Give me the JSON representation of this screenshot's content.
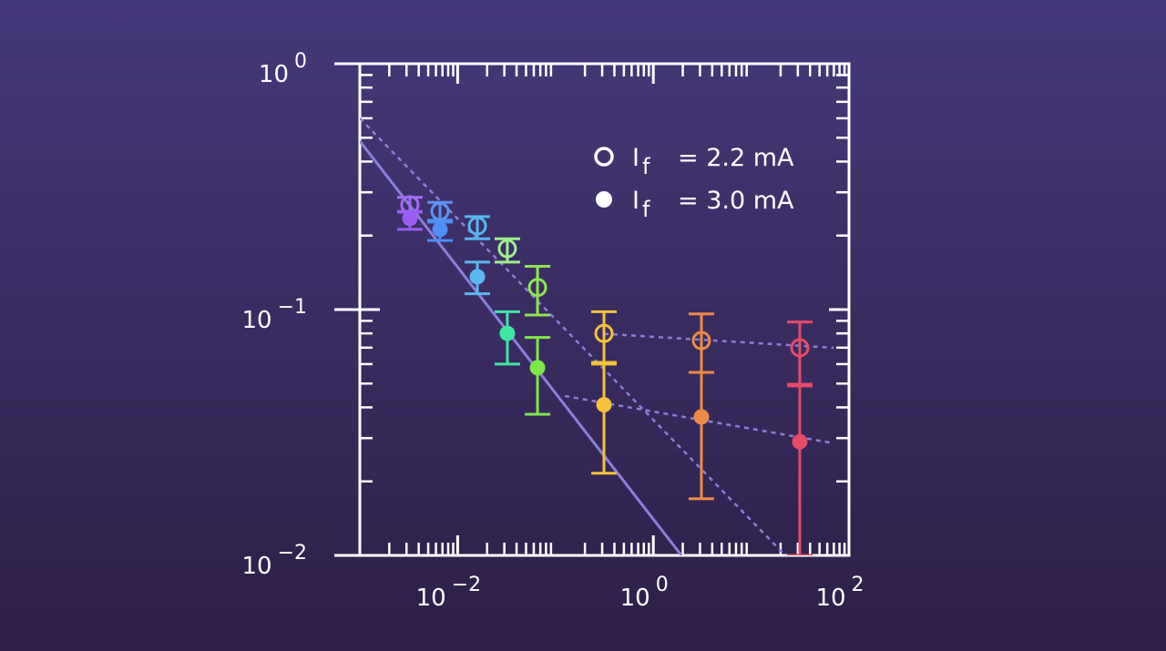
{
  "chart_data": {
    "type": "scatter",
    "log_x": true,
    "log_y": true,
    "xlim": [
      0.001,
      100
    ],
    "ylim": [
      0.01,
      1
    ],
    "xticks": [
      {
        "value": 0.01,
        "label": "10",
        "exponent": "−2"
      },
      {
        "value": 1,
        "label": "10",
        "exponent": "0"
      },
      {
        "value": 100,
        "label": "10",
        "exponent": "2"
      }
    ],
    "yticks": [
      {
        "value": 1,
        "label": "10",
        "exponent": "0"
      },
      {
        "value": 0.1,
        "label": "10",
        "exponent": "−1"
      },
      {
        "value": 0.01,
        "label": "10",
        "exponent": "−2"
      }
    ],
    "series": [
      {
        "name": "I",
        "subscript": "f",
        "label": "= 2.2 mA",
        "marker": "open",
        "x": [
          0.00325,
          0.0066,
          0.0159,
          0.0322,
          0.0655,
          0.313,
          3.1,
          31.4
        ],
        "values": [
          0.267,
          0.251,
          0.219,
          0.177,
          0.123,
          0.08,
          0.0748,
          0.0699
        ],
        "low": [
          0.249,
          0.231,
          0.194,
          0.156,
          0.095,
          0.06,
          0.0555,
          0.0497
        ],
        "high": [
          0.286,
          0.273,
          0.239,
          0.194,
          0.15,
          0.098,
          0.096,
          0.089
        ],
        "colors": [
          "#a46cf5",
          "#5b93f2",
          "#58b6ee",
          "#9ef08c",
          "#8ee650",
          "#f6c23a",
          "#ef8a44",
          "#e64b6a"
        ]
      },
      {
        "name": "I",
        "subscript": "f",
        "label": "= 3.0 mA",
        "marker": "filled",
        "x": [
          0.00325,
          0.0066,
          0.0159,
          0.0322,
          0.0655,
          0.313,
          3.1,
          31.4
        ],
        "values": [
          0.235,
          0.212,
          0.136,
          0.08,
          0.058,
          0.041,
          0.0366,
          0.029
        ],
        "low": [
          0.212,
          0.191,
          0.116,
          0.06,
          0.0375,
          0.0216,
          0.017,
          0.01
        ],
        "high": [
          0.251,
          0.227,
          0.156,
          0.098,
          0.077,
          0.061,
          0.0555,
          0.0489
        ],
        "colors": [
          "#9b5cf6",
          "#4f8ff7",
          "#5ab8f0",
          "#3ee6a4",
          "#7de84a",
          "#f6c23a",
          "#ef8a44",
          "#e64b6a"
        ]
      }
    ],
    "lines": [
      {
        "style": "solid",
        "color": "#8a80d8",
        "x": [
          0.001,
          1.94
        ],
        "values": [
          0.484,
          0.01
        ]
      },
      {
        "style": "dashed",
        "color": "#8a80d8",
        "x": [
          0.001,
          22.3
        ],
        "values": [
          0.6,
          0.01
        ]
      },
      {
        "style": "dashed",
        "color": "#8a80d8",
        "x": [
          0.313,
          69.5
        ],
        "values": [
          0.0797,
          0.0699
        ]
      },
      {
        "style": "dashed",
        "color": "#8a80d8",
        "x": [
          0.1245,
          69.5
        ],
        "values": [
          0.0445,
          0.0286
        ]
      }
    ]
  }
}
